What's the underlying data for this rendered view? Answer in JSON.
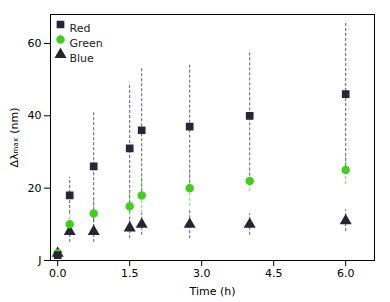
{
  "chart_data": {
    "type": "scatter",
    "x": [
      0.0,
      0.25,
      0.75,
      1.5,
      1.75,
      2.75,
      4.0,
      6.0
    ],
    "series": [
      {
        "name": "Red",
        "color": "#2a2535",
        "marker": "square",
        "values": [
          1.5,
          18,
          26,
          31,
          36,
          37,
          40,
          46
        ],
        "errors": [
          1.0,
          5,
          15,
          18,
          17,
          17,
          18,
          20
        ]
      },
      {
        "name": "Green",
        "color": "#44cc22",
        "marker": "circle",
        "values": [
          2,
          10,
          13,
          15,
          18,
          20,
          22,
          25
        ],
        "errors": [
          1,
          3,
          4,
          4,
          5,
          5,
          3,
          4
        ]
      },
      {
        "name": "Blue",
        "color": "#2a2535",
        "marker": "triangle",
        "values": [
          2,
          8,
          8,
          9,
          10,
          10,
          10,
          11
        ],
        "errors": [
          1,
          3,
          3,
          3,
          3,
          4,
          3,
          3
        ]
      }
    ],
    "xlim": [
      -0.15,
      6.6
    ],
    "ylim": [
      0,
      68
    ],
    "xticks": [
      {
        "value": 0.0,
        "label": "0.0"
      },
      1.5,
      {
        "value": 3.0,
        "label": "3.0"
      },
      4.5,
      {
        "value": 6.0,
        "label": "6.0"
      }
    ],
    "yticks": [
      {
        "value": 0,
        "label": "J"
      },
      20,
      40,
      60
    ],
    "xlabel": "Time (h)",
    "ylabel": "Δλₘₐₓ (nm)",
    "legend": "upper left",
    "grid": false
  }
}
